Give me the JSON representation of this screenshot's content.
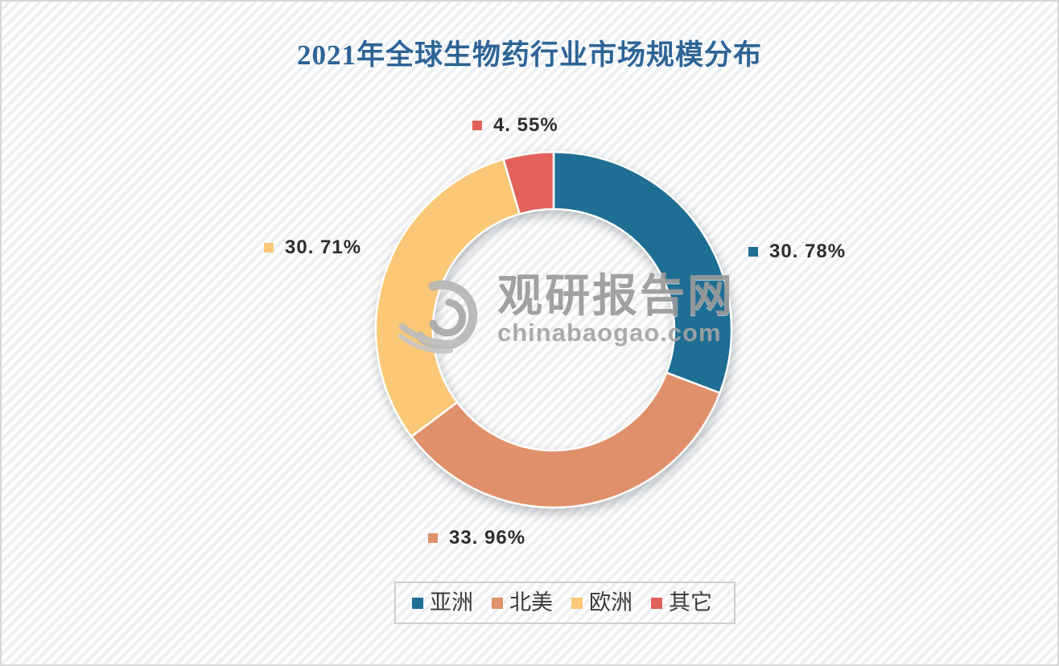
{
  "page": {
    "title": "2021年全球生物药行业市场规模分布",
    "background_stripe_color": "#edf0f3",
    "title_color": "#2d6496"
  },
  "chart_data": {
    "type": "pie",
    "subtype": "donut",
    "title": "2021年全球生物药行业市场规模分布",
    "direction": "clockwise",
    "start_angle_deg": 0,
    "unit": "%",
    "legend_position": "bottom",
    "categories": [
      "亚洲",
      "北美",
      "欧洲",
      "其它"
    ],
    "values": [
      30.78,
      33.96,
      30.71,
      4.55
    ],
    "segments": [
      {
        "name": "亚洲",
        "value": 30.78,
        "label": "30. 78%",
        "color": "#1f6e93"
      },
      {
        "name": "北美",
        "value": 33.96,
        "label": "33. 96%",
        "color": "#e0916b"
      },
      {
        "name": "欧洲",
        "value": 30.71,
        "label": "30. 71%",
        "color": "#fac876"
      },
      {
        "name": "其它",
        "value": 4.55,
        "label": "4. 55%",
        "color": "#e0625a"
      }
    ]
  },
  "legend": {
    "items": [
      {
        "label": "亚洲",
        "color": "#1f6e93"
      },
      {
        "label": "北美",
        "color": "#e0916b"
      },
      {
        "label": "欧洲",
        "color": "#fac876"
      },
      {
        "label": "其它",
        "color": "#e0625a"
      }
    ]
  },
  "watermark": {
    "name": "观研报告网",
    "domain": "chinabaogao.com",
    "logo_color": "#b3b3b3"
  }
}
